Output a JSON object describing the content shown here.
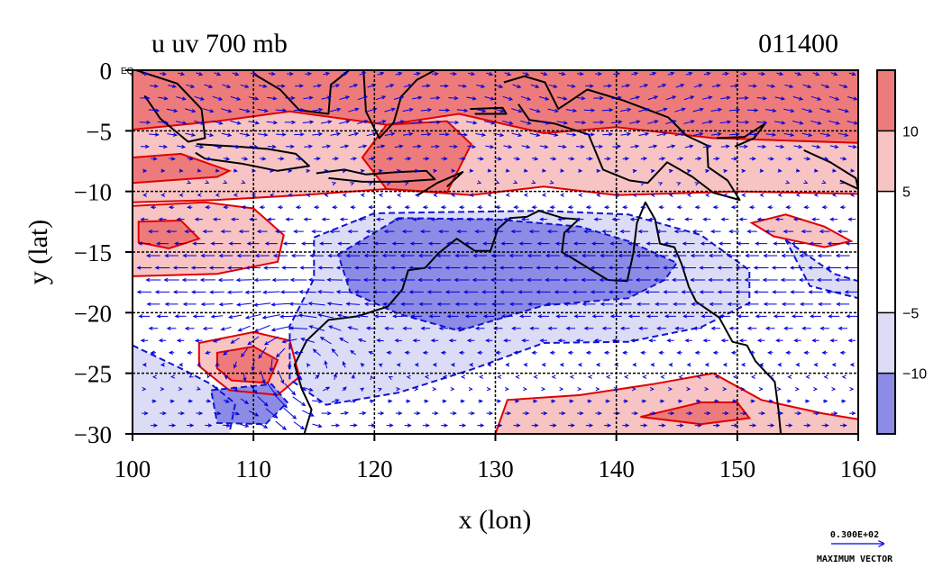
{
  "figure": {
    "title_left": "u  uv  700  mb",
    "title_right": "011400",
    "map_label": "EQ",
    "max_vector_value": "0.300E+02",
    "max_vector_label": "MAXIMUM  VECTOR"
  },
  "chart_data": {
    "type": "heatmap",
    "title": "u  uv  700  mb",
    "subtitle": "011400",
    "xlabel": "x (lon)",
    "ylabel": "y (lat)",
    "xlim": [
      100,
      160
    ],
    "ylim": [
      -30,
      0
    ],
    "xticks": [
      100,
      110,
      120,
      130,
      140,
      150,
      160
    ],
    "yticks": [
      0,
      -5,
      -10,
      -15,
      -20,
      -25,
      -30
    ],
    "xtick_labels": [
      "100",
      "110",
      "120",
      "130",
      "140",
      "150",
      "160"
    ],
    "ytick_labels": [
      "0",
      "−5",
      "−10",
      "−15",
      "−20",
      "−25",
      "−30"
    ],
    "grid": true,
    "colorbar": {
      "levels": [
        -15,
        -10,
        -5,
        5,
        10,
        15
      ],
      "tick_values": [
        10,
        5,
        -5,
        -10
      ],
      "tick_labels": [
        "10",
        "5",
        "−5",
        "−10"
      ],
      "colors": [
        "#8c8ce6",
        "#dcdcf6",
        "#ffffff",
        "#f7c3c3",
        "#ee7b7b"
      ]
    },
    "colors": {
      "positive_strong": "#ee7b7b",
      "positive_weak": "#f7c3c3",
      "negative_strong": "#8c8ce6",
      "negative_weak": "#dcdcf6",
      "positive_contour": "#e00000",
      "negative_contour": "#1414d2",
      "vector": "#0000dd",
      "coast": "#000000"
    },
    "regions": [
      {
        "level": "positive_weak",
        "points": [
          [
            100,
            0
          ],
          [
            160,
            0
          ],
          [
            160,
            -10.2
          ],
          [
            150,
            -10
          ],
          [
            140,
            -10.3
          ],
          [
            134,
            -9.6
          ],
          [
            128,
            -10.3
          ],
          [
            121,
            -9.8
          ],
          [
            114,
            -10.3
          ],
          [
            107,
            -10.7
          ],
          [
            100,
            -10.9
          ]
        ]
      },
      {
        "level": "positive_weak",
        "points": [
          [
            100,
            -11.2
          ],
          [
            106,
            -10.9
          ],
          [
            110,
            -11.4
          ],
          [
            112.5,
            -13.6
          ],
          [
            112,
            -15.8
          ],
          [
            107,
            -16.8
          ],
          [
            100,
            -17
          ]
        ]
      },
      {
        "level": "positive_weak",
        "points": [
          [
            105.5,
            -22.5
          ],
          [
            110,
            -21.6
          ],
          [
            113,
            -22.3
          ],
          [
            113.8,
            -25.3
          ],
          [
            112,
            -26.8
          ],
          [
            108,
            -26.4
          ],
          [
            105.5,
            -24.4
          ]
        ]
      },
      {
        "level": "positive_weak",
        "points": [
          [
            130,
            -30
          ],
          [
            131,
            -27.2
          ],
          [
            137,
            -26.8
          ],
          [
            143,
            -25.9
          ],
          [
            148,
            -25
          ],
          [
            152,
            -27.2
          ],
          [
            157,
            -28.3
          ],
          [
            160,
            -28.8
          ],
          [
            160,
            -30
          ]
        ]
      },
      {
        "level": "positive_weak",
        "points": [
          [
            151.2,
            -12.6
          ],
          [
            154,
            -11.9
          ],
          [
            157.2,
            -12.9
          ],
          [
            159.4,
            -14.1
          ],
          [
            157.2,
            -14.6
          ],
          [
            153,
            -13.7
          ]
        ]
      },
      {
        "level": "positive_strong",
        "points": [
          [
            100,
            0
          ],
          [
            160,
            0
          ],
          [
            160,
            -6
          ],
          [
            148,
            -5.6
          ],
          [
            140,
            -4.7
          ],
          [
            134,
            -5.2
          ],
          [
            127,
            -3.6
          ],
          [
            121,
            -4.5
          ],
          [
            113,
            -3.4
          ],
          [
            107,
            -4.2
          ],
          [
            100,
            -4.9
          ]
        ]
      },
      {
        "level": "positive_strong",
        "points": [
          [
            100,
            -7.2
          ],
          [
            104,
            -6.9
          ],
          [
            108,
            -8.3
          ],
          [
            107,
            -8.8
          ],
          [
            100,
            -9.3
          ]
        ]
      },
      {
        "level": "positive_strong",
        "points": [
          [
            121,
            -4.5
          ],
          [
            126,
            -4.2
          ],
          [
            128,
            -6.1
          ],
          [
            126,
            -10.1
          ],
          [
            121,
            -9.8
          ],
          [
            119,
            -7.2
          ]
        ]
      },
      {
        "level": "positive_strong",
        "points": [
          [
            100.5,
            -12.5
          ],
          [
            104,
            -12.4
          ],
          [
            105.5,
            -13.9
          ],
          [
            103,
            -14.7
          ],
          [
            100.5,
            -14.2
          ]
        ]
      },
      {
        "level": "positive_strong",
        "points": [
          [
            107,
            -23.3
          ],
          [
            110,
            -22.8
          ],
          [
            112,
            -23.9
          ],
          [
            111.2,
            -25.8
          ],
          [
            108.2,
            -25.6
          ],
          [
            107,
            -24.6
          ]
        ]
      },
      {
        "level": "positive_strong",
        "points": [
          [
            142,
            -28.6
          ],
          [
            147,
            -27.4
          ],
          [
            150,
            -27.4
          ],
          [
            151,
            -28.7
          ],
          [
            147,
            -29.2
          ]
        ]
      },
      {
        "level": "negative_weak",
        "points": [
          [
            115,
            -13.8
          ],
          [
            120,
            -11.8
          ],
          [
            126,
            -11.7
          ],
          [
            134,
            -11.6
          ],
          [
            141,
            -11.9
          ],
          [
            147,
            -13.6
          ],
          [
            151,
            -16.5
          ],
          [
            151,
            -19.2
          ],
          [
            147,
            -21.2
          ],
          [
            141,
            -22.4
          ],
          [
            134,
            -22.5
          ],
          [
            128,
            -24.7
          ],
          [
            122,
            -26.6
          ],
          [
            116,
            -27.6
          ],
          [
            113,
            -25.5
          ],
          [
            113,
            -21.1
          ],
          [
            115,
            -17.2
          ]
        ]
      },
      {
        "level": "negative_weak",
        "points": [
          [
            100,
            -22.7
          ],
          [
            104,
            -24.6
          ],
          [
            106.5,
            -25.9
          ],
          [
            108.5,
            -27.5
          ],
          [
            108,
            -30
          ],
          [
            100,
            -30
          ]
        ]
      },
      {
        "level": "negative_weak",
        "points": [
          [
            154,
            -14
          ],
          [
            158,
            -16.8
          ],
          [
            160,
            -17.4
          ],
          [
            160,
            -18.8
          ],
          [
            156,
            -17.8
          ]
        ]
      },
      {
        "level": "negative_strong",
        "points": [
          [
            117,
            -15.2
          ],
          [
            122,
            -12.2
          ],
          [
            130,
            -12.3
          ],
          [
            137,
            -12.9
          ],
          [
            141,
            -14.1
          ],
          [
            145,
            -15.9
          ],
          [
            144,
            -17.3
          ],
          [
            141,
            -18.8
          ],
          [
            134,
            -19.4
          ],
          [
            127,
            -21.5
          ],
          [
            122,
            -20.1
          ],
          [
            118,
            -18.3
          ]
        ]
      },
      {
        "level": "negative_strong",
        "points": [
          [
            106.5,
            -26.4
          ],
          [
            111.5,
            -25.9
          ],
          [
            112.8,
            -27.4
          ],
          [
            111,
            -29.2
          ],
          [
            107,
            -29.1
          ]
        ]
      }
    ],
    "coastlines": [
      {
        "name": "australia",
        "points": [
          [
            114.2,
            -30
          ],
          [
            114.8,
            -28
          ],
          [
            114,
            -26.3
          ],
          [
            113.4,
            -24.3
          ],
          [
            114.4,
            -22.3
          ],
          [
            116.2,
            -20.6
          ],
          [
            118.6,
            -20.3
          ],
          [
            121.1,
            -19.5
          ],
          [
            122.3,
            -18.1
          ],
          [
            122.8,
            -16.5
          ],
          [
            124.2,
            -16.3
          ],
          [
            125.3,
            -15.1
          ],
          [
            126.8,
            -13.9
          ],
          [
            128.3,
            -14.9
          ],
          [
            129.6,
            -14.9
          ],
          [
            130.2,
            -13.1
          ],
          [
            131.2,
            -12.2
          ],
          [
            132.6,
            -12.1
          ],
          [
            133.6,
            -11.6
          ],
          [
            135.6,
            -12.2
          ],
          [
            136.9,
            -12.3
          ],
          [
            135.7,
            -13.4
          ],
          [
            135.5,
            -15
          ],
          [
            137,
            -15.9
          ],
          [
            139.3,
            -17.3
          ],
          [
            140.9,
            -17.4
          ],
          [
            141.4,
            -15.1
          ],
          [
            141.7,
            -12.6
          ],
          [
            142.4,
            -10.9
          ],
          [
            143.2,
            -12.3
          ],
          [
            143.6,
            -14.3
          ],
          [
            144.8,
            -14.6
          ],
          [
            145.4,
            -16
          ],
          [
            146,
            -17.9
          ],
          [
            146.6,
            -19.1
          ],
          [
            148.5,
            -20.4
          ],
          [
            149.6,
            -22.4
          ],
          [
            150.8,
            -22.7
          ],
          [
            151.5,
            -24
          ],
          [
            153.1,
            -25.7
          ],
          [
            153.4,
            -28
          ],
          [
            153.6,
            -30
          ]
        ]
      },
      {
        "name": "new-guinea",
        "points": [
          [
            130.7,
            -1
          ],
          [
            132.4,
            -0.5
          ],
          [
            134.1,
            -1
          ],
          [
            135.2,
            -3.2
          ],
          [
            137.6,
            -1.6
          ],
          [
            140.6,
            -2.5
          ],
          [
            144.3,
            -3.9
          ],
          [
            145.8,
            -5.4
          ],
          [
            147.5,
            -6.2
          ],
          [
            147.6,
            -8
          ],
          [
            149.2,
            -9.1
          ],
          [
            150.2,
            -10.7
          ],
          [
            148,
            -10.1
          ],
          [
            146.3,
            -8.8
          ],
          [
            144.2,
            -7.6
          ],
          [
            142.6,
            -9.3
          ],
          [
            141.1,
            -9.1
          ],
          [
            138.9,
            -8.2
          ],
          [
            137.7,
            -5.3
          ],
          [
            134.9,
            -4.4
          ],
          [
            132.8,
            -4.1
          ],
          [
            131.9,
            -2.8
          ]
        ]
      },
      {
        "name": "java",
        "points": [
          [
            105.3,
            -6.1
          ],
          [
            108.6,
            -6.3
          ],
          [
            111.2,
            -6.5
          ],
          [
            113.5,
            -6.9
          ],
          [
            114.6,
            -7.9
          ],
          [
            112,
            -8.3
          ],
          [
            109,
            -7.7
          ],
          [
            106,
            -7.3
          ],
          [
            105.2,
            -6.8
          ]
        ]
      },
      {
        "name": "borneo",
        "points": [
          [
            110,
            -0.3
          ],
          [
            112.2,
            -1.6
          ],
          [
            113.8,
            -3.3
          ],
          [
            116.2,
            -3.6
          ],
          [
            116.4,
            -1.2
          ],
          [
            117.9,
            0
          ]
        ]
      },
      {
        "name": "sulawesi",
        "points": [
          [
            119.1,
            0
          ],
          [
            119.3,
            -3.4
          ],
          [
            120.4,
            -5.6
          ],
          [
            121.6,
            -4.3
          ],
          [
            122.2,
            -2.2
          ],
          [
            123.5,
            -0.8
          ],
          [
            125,
            0
          ]
        ]
      },
      {
        "name": "sumatra",
        "points": [
          [
            100.3,
            0
          ],
          [
            103.7,
            -1.1
          ],
          [
            105.7,
            -3.2
          ],
          [
            106,
            -5.6
          ],
          [
            104.6,
            -5.9
          ],
          [
            102.3,
            -4
          ],
          [
            101,
            -2.1
          ]
        ]
      },
      {
        "name": "nusa-tenggara",
        "points": [
          [
            115.2,
            -8.5
          ],
          [
            117.5,
            -8.2
          ],
          [
            119.3,
            -8.6
          ],
          [
            122,
            -8.4
          ],
          [
            124.3,
            -8.3
          ],
          [
            125,
            -9
          ],
          [
            122,
            -9.2
          ],
          [
            119,
            -9.2
          ],
          [
            116.2,
            -8.9
          ]
        ]
      },
      {
        "name": "timor",
        "points": [
          [
            123.6,
            -10.3
          ],
          [
            125.2,
            -9.3
          ],
          [
            127.3,
            -8.4
          ],
          [
            126,
            -9.6
          ]
        ]
      },
      {
        "name": "seram",
        "points": [
          [
            127.9,
            -3.2
          ],
          [
            130.6,
            -3.1
          ],
          [
            130.9,
            -3.6
          ],
          [
            128.3,
            -3.6
          ]
        ]
      },
      {
        "name": "new-britain",
        "points": [
          [
            148.3,
            -5.6
          ],
          [
            150.6,
            -5.5
          ],
          [
            152.3,
            -4.4
          ],
          [
            151.4,
            -5.6
          ],
          [
            149.8,
            -6.3
          ]
        ]
      },
      {
        "name": "solomon-islands",
        "points": [
          [
            155.5,
            -6.6
          ],
          [
            157.7,
            -7.6
          ],
          [
            159.8,
            -8.9
          ],
          [
            160,
            -9.8
          ],
          [
            158.5,
            -9.1
          ]
        ]
      }
    ],
    "vector_field": {
      "lon_range": [
        101,
        160
      ],
      "lat_range": [
        -29.7,
        -0.3
      ],
      "spacing_lon": 1.5,
      "spacing_lat": 1.0,
      "max_vector_magnitude": 30
    }
  }
}
